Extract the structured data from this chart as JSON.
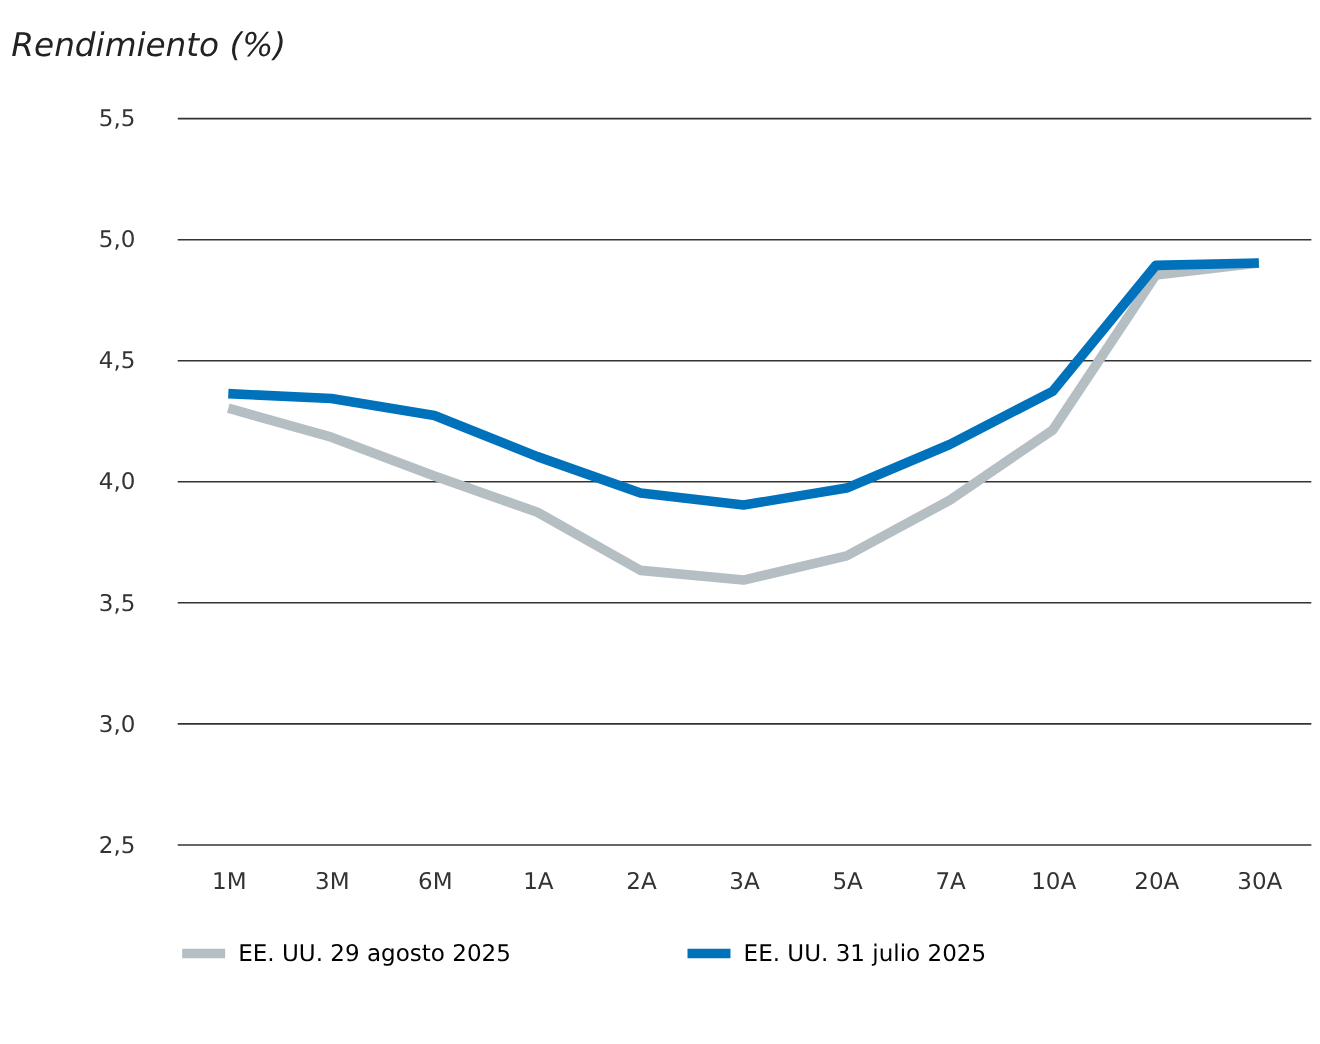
{
  "chart_data": {
    "type": "line",
    "title": "Rendimiento (%)",
    "categories": [
      "1M",
      "3M",
      "6M",
      "1A",
      "2A",
      "3A",
      "5A",
      "7A",
      "10A",
      "20A",
      "30A"
    ],
    "series": [
      {
        "name": "EE. UU. 29 agosto 2025",
        "color": "#b4bec3",
        "values": [
          4.3,
          4.18,
          4.02,
          3.87,
          3.63,
          3.59,
          3.69,
          3.92,
          4.21,
          4.85,
          4.9
        ]
      },
      {
        "name": "EE. UU. 31 julio 2025",
        "color": "#0072bc",
        "values": [
          4.36,
          4.34,
          4.27,
          4.1,
          3.95,
          3.9,
          3.97,
          4.15,
          4.37,
          4.89,
          4.9
        ]
      }
    ],
    "ylim": [
      2.5,
      5.5
    ],
    "yticks": [
      {
        "value": 2.5,
        "label": "2,5"
      },
      {
        "value": 3.0,
        "label": "3,0"
      },
      {
        "value": 3.5,
        "label": "3,5"
      },
      {
        "value": 4.0,
        "label": "4,0"
      },
      {
        "value": 4.5,
        "label": "4,5"
      },
      {
        "value": 5.0,
        "label": "5,0"
      },
      {
        "value": 5.5,
        "label": "5,5"
      }
    ],
    "grid": "y",
    "legend": "bottom",
    "marker": "none",
    "line_style": "solid"
  }
}
